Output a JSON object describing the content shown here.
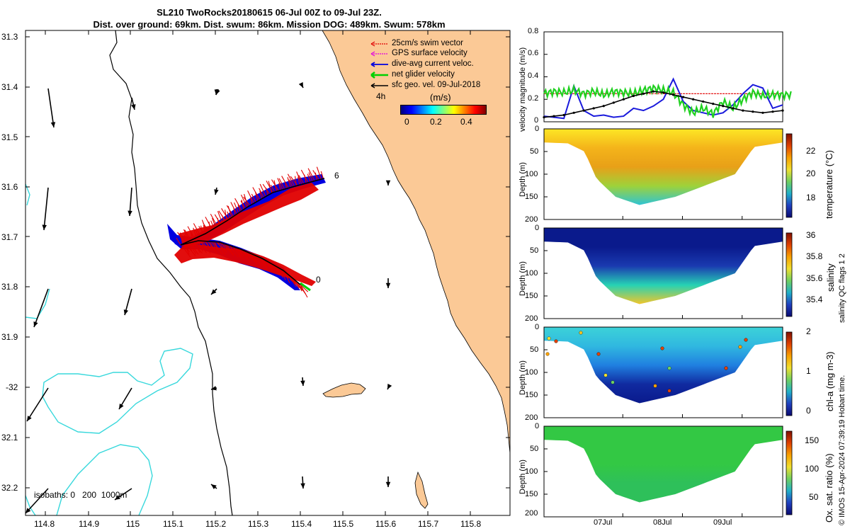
{
  "title": {
    "line1": "SL210 TwoRocks20180615 06-Jul 00Z to 09-Jul 23Z.",
    "line2": "Dist. over ground: 69km. Dist. swum: 86km. Mission DOG: 489km. Swum: 578km"
  },
  "map": {
    "lat_ticks": [
      "31.3",
      "31.4",
      "31.5",
      "31.6",
      "31.7",
      "31.8",
      "31.9",
      "-32",
      "32.1",
      "32.2"
    ],
    "lon_ticks": [
      "114.8",
      "114.9",
      "115",
      "115.1",
      "115.2",
      "115.3",
      "115.4",
      "115.5",
      "115.6",
      "115.7",
      "115.8"
    ],
    "legend": [
      {
        "label": "25cm/s swim vector",
        "color": "#e00000"
      },
      {
        "label": "GPS surface velocity",
        "color": "#e000e0"
      },
      {
        "label": "dive-avg current veloc.",
        "color": "#0000e0"
      },
      {
        "label": "net glider velocity",
        "color": "#00d000"
      },
      {
        "label": "sfc geo. vel. 09-Jul-2018",
        "color": "#000000"
      }
    ],
    "colorbar": {
      "interval": "4h",
      "unit": "(m/s)",
      "ticks": [
        "0",
        "0.2",
        "0.4"
      ]
    },
    "track_labels": {
      "start": "0",
      "end": "6"
    },
    "isobaths_label": "isobaths: 0   200  1000m",
    "colors": {
      "land": "#fbc996",
      "isobath_deep": "#38d8dc",
      "swim": "#e00000",
      "current": "#0000e0",
      "net": "#00d000"
    }
  },
  "right": {
    "x_ticks": [
      "07Jul",
      "08Jul",
      "09Jul"
    ],
    "velocity": {
      "ylabel": "velocity magnitude (m/s)",
      "yticks": [
        "0.8",
        "0.6",
        "0.4",
        "0.2",
        "0"
      ],
      "ylim": [
        0,
        0.8
      ],
      "series": [
        {
          "name": "swim",
          "color": "#e00000",
          "values": [
            0.25,
            0.25,
            0.25,
            0.25,
            0.25,
            0.25,
            0.25,
            0.25,
            0.25,
            0.25,
            0.25,
            0.25,
            0.25,
            0.25,
            0.25,
            0.25,
            0.25,
            0.25,
            0.25,
            0.25,
            0.25,
            0.25,
            0.25,
            0.25,
            0.25
          ]
        },
        {
          "name": "current",
          "color": "#1a1adc",
          "values": [
            0.05,
            0.04,
            0.03,
            0.32,
            0.1,
            0.05,
            0.06,
            0.04,
            0.05,
            0.12,
            0.1,
            0.14,
            0.2,
            0.38,
            0.18,
            0.1,
            0.08,
            0.06,
            0.08,
            0.15,
            0.25,
            0.33,
            0.3,
            0.12,
            0.15
          ]
        },
        {
          "name": "net",
          "color": "#20d020",
          "values": [
            0.25,
            0.27,
            0.26,
            0.28,
            0.25,
            0.27,
            0.24,
            0.27,
            0.26,
            0.25,
            0.28,
            0.3,
            0.28,
            0.26,
            0.15,
            0.08,
            0.12,
            0.07,
            0.18,
            0.12,
            0.2,
            0.26,
            0.23,
            0.24,
            0.24
          ]
        },
        {
          "name": "geo",
          "color": "#000000",
          "values": [
            0.04,
            0.05,
            0.06,
            0.08,
            0.1,
            0.12,
            0.14,
            0.17,
            0.2,
            0.23,
            0.25,
            0.27,
            0.26,
            0.24,
            0.22,
            0.2,
            0.18,
            0.16,
            0.14,
            0.12,
            0.1,
            0.09,
            0.08,
            0.09,
            0.1
          ]
        }
      ]
    },
    "panels": [
      {
        "ylabel": "Depth (m)",
        "yticks": [
          "0",
          "50",
          "100",
          "150",
          "200"
        ],
        "cbar_label": "temperature (°C)",
        "cbar_ticks": [
          "22",
          "20",
          "18"
        ],
        "cbar_range": [
          16.5,
          23.5
        ]
      },
      {
        "ylabel": "Depth (m)",
        "yticks": [
          "0",
          "50",
          "100",
          "150",
          "200"
        ],
        "cbar_label": "salinity",
        "cbar_ticks": [
          "36",
          "35.8",
          "35.6",
          "35.4"
        ],
        "cbar_range": [
          35.25,
          36.05
        ]
      },
      {
        "ylabel": "Depth (m)",
        "yticks": [
          "0",
          "50",
          "100",
          "150",
          "200"
        ],
        "cbar_label": "chl-a (mg m-3)",
        "cbar_ticks": [
          "2",
          "1",
          "0"
        ],
        "cbar_range": [
          0,
          2
        ]
      },
      {
        "ylabel": "Depth (m)",
        "yticks": [
          "0",
          "50",
          "100",
          "150",
          "200"
        ],
        "cbar_label": "Ox. sat. ratio (%)",
        "cbar_ticks": [
          "150",
          "100",
          "50"
        ],
        "cbar_range": [
          25,
          175
        ]
      }
    ],
    "qc_text": "salinity QC flags 1  2",
    "credit": "© IMOS 15-Apr-2024 07:39:19 Hobart time."
  }
}
